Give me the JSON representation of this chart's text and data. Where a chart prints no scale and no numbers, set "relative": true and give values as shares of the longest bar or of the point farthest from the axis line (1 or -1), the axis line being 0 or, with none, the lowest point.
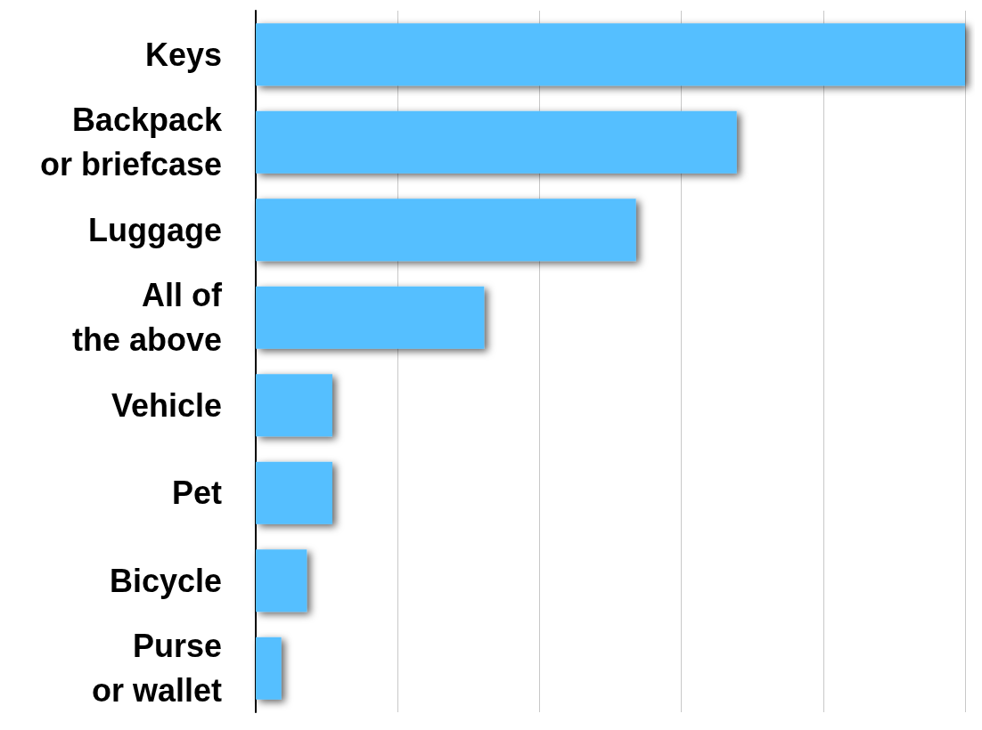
{
  "chart_data": {
    "type": "bar",
    "orientation": "horizontal",
    "relative": true,
    "categories": [
      "Keys",
      "Backpack\nor briefcase",
      "Luggage",
      "All of\nthe above",
      "Vehicle",
      "Pet",
      "Bicycle",
      "Purse\nor wallet"
    ],
    "values": [
      1,
      0.678,
      0.536,
      0.322,
      0.108,
      0.108,
      0.072,
      0.036
    ],
    "color": "#55bfff",
    "grid": "x"
  }
}
